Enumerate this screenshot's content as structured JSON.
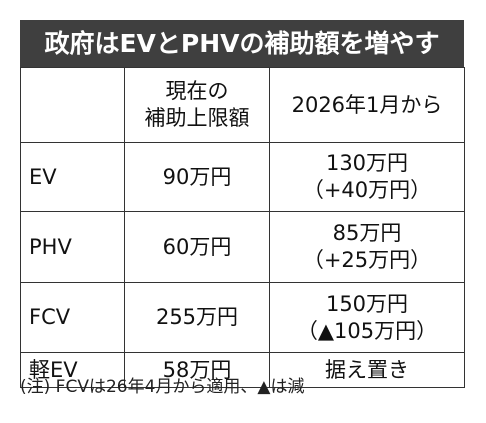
{
  "title": "政府はEVとPHVの補助額を増やす",
  "table": {
    "headers": {
      "corner": "",
      "current_line1": "現在の",
      "current_line2": "補助上限額",
      "future": "2026年1月から"
    },
    "rows": [
      {
        "type": "EV",
        "current": "90万円",
        "future_line1": "130万円",
        "future_line2": "（+40万円）"
      },
      {
        "type": "PHV",
        "current": "60万円",
        "future_line1": "85万円",
        "future_line2": "（+25万円）"
      },
      {
        "type": "FCV",
        "current": "255万円",
        "future_line1": "150万円",
        "future_line2": "（▲105万円）"
      },
      {
        "type": "軽EV",
        "current": "58万円",
        "future_line1": "据え置き",
        "future_line2": ""
      }
    ]
  },
  "note": "(注) FCVは26年4月から適用、▲は減",
  "colors": {
    "title_bg": "#3f3f3f",
    "title_text": "#ffffff",
    "border": "#333333"
  }
}
